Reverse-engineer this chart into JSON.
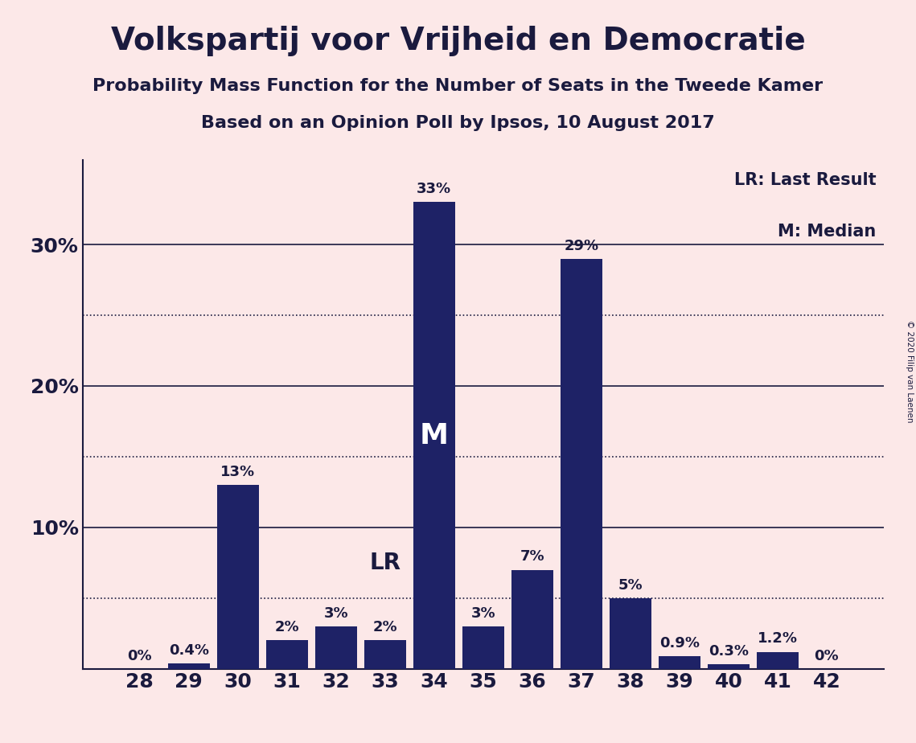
{
  "title": "Volkspartij voor Vrijheid en Democratie",
  "subtitle1": "Probability Mass Function for the Number of Seats in the Tweede Kamer",
  "subtitle2": "Based on an Opinion Poll by Ipsos, 10 August 2017",
  "copyright": "© 2020 Filip van Laenen",
  "categories": [
    28,
    29,
    30,
    31,
    32,
    33,
    34,
    35,
    36,
    37,
    38,
    39,
    40,
    41,
    42
  ],
  "values": [
    0.0,
    0.4,
    13.0,
    2.0,
    3.0,
    2.0,
    33.0,
    3.0,
    7.0,
    29.0,
    5.0,
    0.9,
    0.3,
    1.2,
    0.0
  ],
  "bar_color": "#1e2266",
  "background_color": "#fce8e8",
  "bar_labels": [
    "0%",
    "0.4%",
    "13%",
    "2%",
    "3%",
    "2%",
    "33%",
    "3%",
    "7%",
    "29%",
    "5%",
    "0.9%",
    "0.3%",
    "1.2%",
    "0%"
  ],
  "lr_index": 5,
  "median_index": 6,
  "lr_label": "LR",
  "median_label": "M",
  "legend_text": [
    "LR: Last Result",
    "M: Median"
  ],
  "ylim": [
    0,
    36
  ],
  "yticks": [
    10,
    20,
    30
  ],
  "ytick_labels": [
    "10%",
    "20%",
    "30%"
  ],
  "dotted_yticks": [
    5,
    15,
    25
  ],
  "title_fontsize": 28,
  "subtitle_fontsize": 16,
  "bar_label_fontsize": 13,
  "axis_label_fontsize": 18,
  "legend_fontsize": 15,
  "text_color": "#1a1a3e",
  "lr_label_fontsize": 20,
  "median_label_fontsize": 26
}
